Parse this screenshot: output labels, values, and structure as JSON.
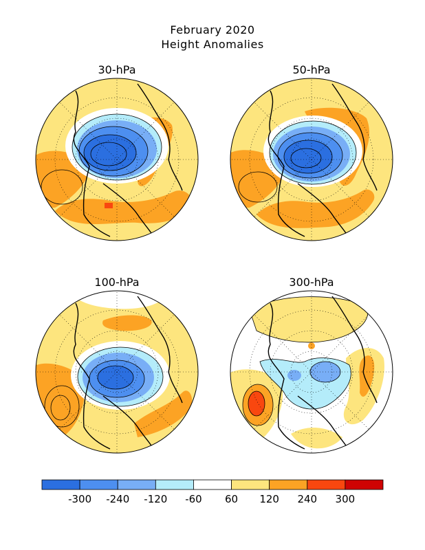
{
  "figure": {
    "title_line1": "February 2020",
    "title_line2": "Height Anomalies"
  },
  "panels": [
    {
      "id": "p30",
      "label": "30-hPa"
    },
    {
      "id": "p50",
      "label": "50-hPa"
    },
    {
      "id": "p100",
      "label": "100-hPa"
    },
    {
      "id": "p300",
      "label": "300-hPa"
    }
  ],
  "colorbar": {
    "colors": [
      "#2b6fe0",
      "#4d8ff0",
      "#78aef6",
      "#b4ecfa",
      "#ffffff",
      "#fde57e",
      "#fca324",
      "#f9470f",
      "#cf0303"
    ],
    "tick_labels": [
      "-300",
      "-240",
      "-120",
      "-60",
      "60",
      "120",
      "240",
      "300"
    ]
  },
  "palette": {
    "ocean_bg": "#fde57e",
    "positive": "#fca324",
    "strong_positive": "#f9470f",
    "negative_deep": "#2b6fe0",
    "negative_mid": "#4d8ff0",
    "negative_light": "#78aef6",
    "negative_pale": "#b4ecfa"
  }
}
